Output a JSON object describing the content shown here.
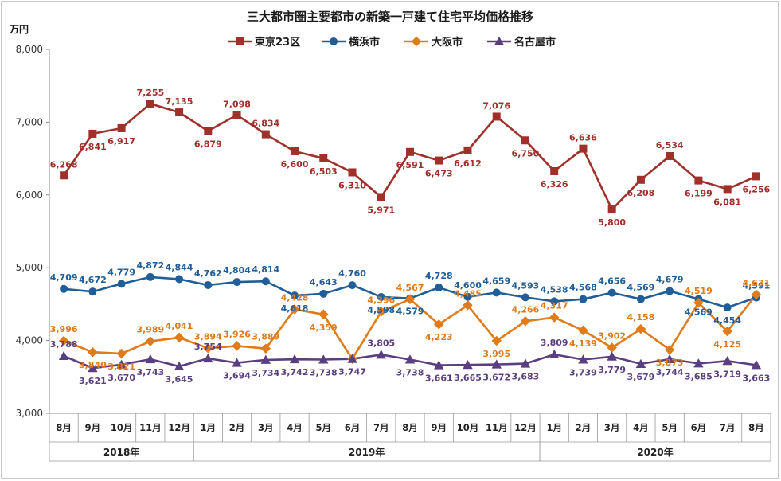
{
  "chart_data": {
    "type": "line",
    "title": "三大都市圏主要都市の新築一戸建て住宅平均価格推移",
    "ylabel": "万円",
    "ylim": [
      3000,
      8000
    ],
    "yticks": [
      "3,000",
      "4,000",
      "5,000",
      "6,000",
      "7,000",
      "8,000"
    ],
    "grid": false,
    "legend": "top",
    "categories": [
      "8月",
      "9月",
      "10月",
      "11月",
      "12月",
      "1月",
      "2月",
      "3月",
      "4月",
      "5月",
      "6月",
      "7月",
      "8月",
      "9月",
      "10月",
      "11月",
      "12月",
      "1月",
      "2月",
      "3月",
      "4月",
      "5月",
      "6月",
      "7月",
      "8月"
    ],
    "years": [
      {
        "label": "2018年",
        "start": 0,
        "end": 4
      },
      {
        "label": "2019年",
        "start": 5,
        "end": 16
      },
      {
        "label": "2020年",
        "start": 17,
        "end": 24
      }
    ],
    "series": [
      {
        "name": "東京23区",
        "color": "#a0302a",
        "marker": "square",
        "values": [
          6268,
          6841,
          6917,
          7255,
          7135,
          6879,
          7098,
          6834,
          6600,
          6503,
          6310,
          5971,
          6591,
          6473,
          6612,
          7076,
          6750,
          6326,
          6636,
          5800,
          6208,
          6534,
          6199,
          6081,
          6256
        ],
        "labels": [
          "6,268",
          "6,841",
          "6,917",
          "7,255",
          "7,135",
          "6,879",
          "7,098",
          "6,834",
          "6,600",
          "6,503",
          "6,310",
          "5,971",
          "6,591",
          "6,473",
          "6,612",
          "7,076",
          "6,750",
          "6,326",
          "6,636",
          "5,800",
          "6,208",
          "6,534",
          "6,199",
          "6,081",
          "6,256"
        ]
      },
      {
        "name": "横浜市",
        "color": "#1f5e99",
        "marker": "circle",
        "values": [
          4709,
          4672,
          4779,
          4872,
          4844,
          4762,
          4804,
          4814,
          4618,
          4643,
          4760,
          4598,
          4579,
          4728,
          4600,
          4659,
          4593,
          4538,
          4568,
          4656,
          4569,
          4679,
          4569,
          4454,
          4591
        ],
        "labels": [
          "4,709",
          "4,672",
          "4,779",
          "4,872",
          "4,844",
          "4,762",
          "4,804",
          "4,814",
          "4,618",
          "4,643",
          "4,760",
          "4,598",
          "4,579",
          "4,728",
          "4,600",
          "4,659",
          "4,593",
          "4,538",
          "4,568",
          "4,656",
          "4,569",
          "4,679",
          "4,569",
          "4,454",
          "4,591"
        ]
      },
      {
        "name": "大阪市",
        "color": "#e07b1a",
        "marker": "diamond",
        "values": [
          3996,
          3840,
          3821,
          3989,
          4041,
          3894,
          3926,
          3889,
          4428,
          4359,
          3747,
          4396,
          4567,
          4223,
          4485,
          3995,
          4266,
          4317,
          4139,
          3902,
          4158,
          3873,
          4519,
          4125,
          4631
        ],
        "labels": [
          "3,996",
          "3,840",
          "3,821",
          "3,989",
          "4,041",
          "3,894",
          "3,926",
          "3,889",
          "4,428",
          "4,359",
          "",
          "4,396",
          "4,567",
          "4,223",
          "4,485",
          "3,995",
          "4,266",
          "4,317",
          "4,139",
          "3,902",
          "4,158",
          "3,873",
          "4,519",
          "4,125",
          "4,631"
        ]
      },
      {
        "name": "名古屋市",
        "color": "#5a3f80",
        "marker": "triangle",
        "values": [
          3788,
          3621,
          3670,
          3743,
          3645,
          3754,
          3694,
          3734,
          3742,
          3738,
          3747,
          3805,
          3738,
          3661,
          3665,
          3672,
          3683,
          3809,
          3739,
          3779,
          3679,
          3744,
          3685,
          3719,
          3663
        ],
        "labels": [
          "3,788",
          "3,621",
          "3,670",
          "3,743",
          "3,645",
          "3,754",
          "3,694",
          "3,734",
          "3,742",
          "3,738",
          "3,747",
          "3,805",
          "3,738",
          "3,661",
          "3,665",
          "3,672",
          "3,683",
          "3,809",
          "3,739",
          "3,779",
          "3,679",
          "3,744",
          "3,685",
          "3,719",
          "3,663"
        ]
      }
    ]
  }
}
